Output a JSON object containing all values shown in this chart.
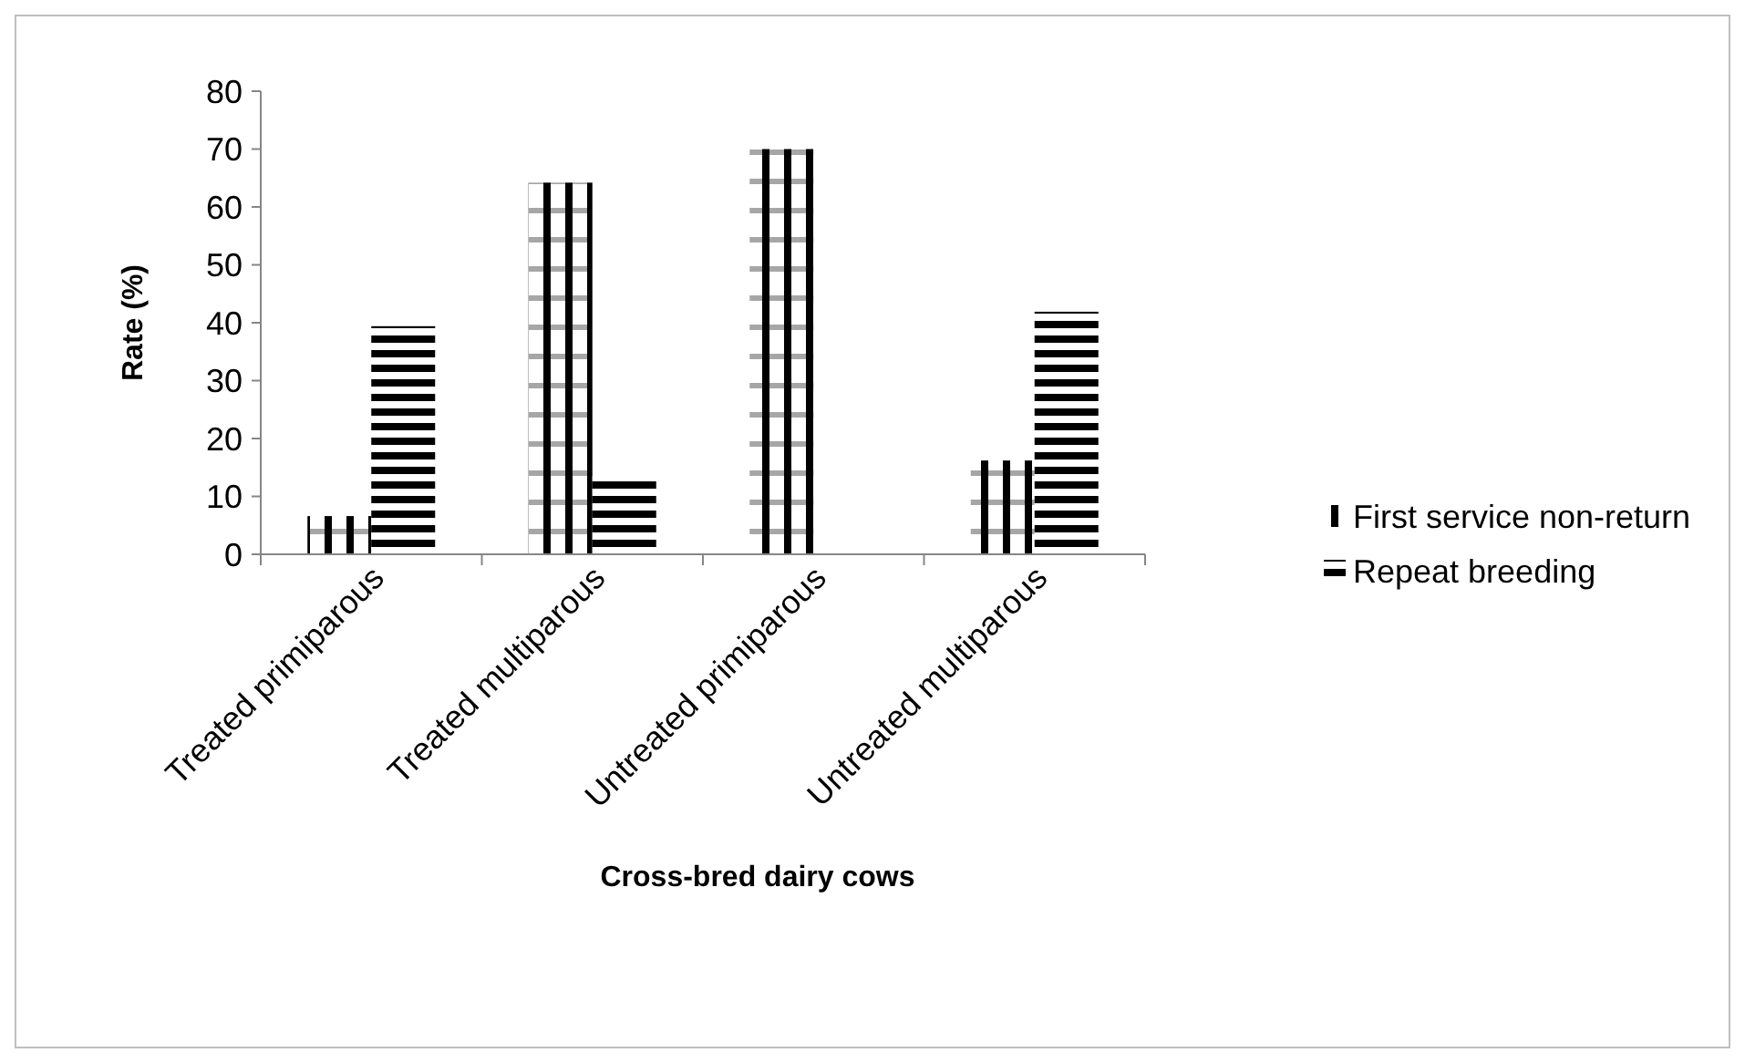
{
  "chart_data": {
    "type": "bar",
    "xlabel": "Cross-bred dairy cows",
    "ylabel": "Rate (%)",
    "categories": [
      "Treated primiparous",
      "Treated multiparous",
      "Untreated primiparous",
      "Untreated multiparous"
    ],
    "series": [
      {
        "name": "First service non-return",
        "color": "#000000",
        "values": [
          6.6,
          64.2,
          70,
          16.2
        ]
      },
      {
        "name": "Repeat breeding",
        "color": "#000000",
        "values": [
          39.4,
          13.5,
          0,
          41.9
        ]
      }
    ],
    "ylim": [
      0,
      80
    ],
    "yticks": [
      0,
      10,
      20,
      30,
      40,
      50,
      60,
      70,
      80
    ],
    "grid": false,
    "legend": "right"
  }
}
